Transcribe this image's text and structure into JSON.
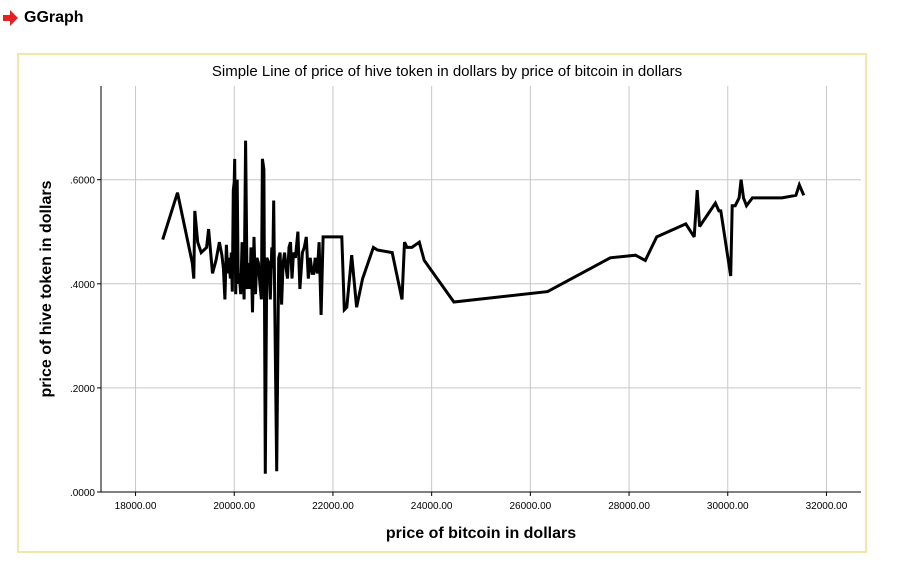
{
  "page": {
    "section_title": "GGraph",
    "section_icon": "red-arrow-right-icon",
    "accent_color": "#e52020",
    "frame_color": "#f1e7a6"
  },
  "chart_data": {
    "type": "line",
    "title": "Simple Line of price of hive token in dollars by price of bitcoin in dollars",
    "xlabel": "price of bitcoin in dollars",
    "ylabel": "price of hive token in dollars",
    "xlim": [
      17300,
      32700
    ],
    "ylim": [
      0,
      0.78
    ],
    "grid": true,
    "line_color": "#000000",
    "x_ticks": [
      18000,
      20000,
      22000,
      24000,
      26000,
      28000,
      30000,
      32000
    ],
    "x_tick_labels": [
      "18000.00",
      "20000.00",
      "22000.00",
      "24000.00",
      "26000.00",
      "28000.00",
      "30000.00",
      "32000.00"
    ],
    "y_ticks": [
      0,
      0.2,
      0.4,
      0.6
    ],
    "y_tick_labels": [
      ".0000",
      ".2000",
      ".4000",
      ".6000"
    ],
    "series": [
      {
        "name": "price of hive token in dollars",
        "x": [
          18550,
          18850,
          19150,
          19180,
          19200,
          19260,
          19330,
          19440,
          19480,
          19560,
          19630,
          19700,
          19750,
          19780,
          19810,
          19840,
          19870,
          19900,
          19920,
          19940,
          19960,
          19980,
          20000,
          20010,
          20030,
          20060,
          20080,
          20100,
          20130,
          20160,
          20200,
          20230,
          20260,
          20280,
          20300,
          20320,
          20340,
          20370,
          20400,
          20430,
          20460,
          20490,
          20520,
          20550,
          20570,
          20600,
          20630,
          20660,
          20700,
          20730,
          20760,
          20780,
          20800,
          20820,
          20860,
          20900,
          20930,
          20960,
          20990,
          21020,
          21050,
          21080,
          21110,
          21140,
          21170,
          21200,
          21240,
          21290,
          21330,
          21380,
          21420,
          21460,
          21500,
          21540,
          21580,
          21610,
          21640,
          21680,
          21720,
          21760,
          21800,
          22180,
          22230,
          22280,
          22380,
          22480,
          22600,
          22820,
          22900,
          23200,
          23400,
          23450,
          23500,
          23600,
          23750,
          23850,
          24450,
          26350,
          27620,
          28130,
          28330,
          28560,
          29150,
          29320,
          29380,
          29430,
          29750,
          29820,
          29860,
          30060,
          30090,
          30150,
          30230,
          30270,
          30320,
          30380,
          30500,
          31100,
          31380,
          31450,
          31540
        ],
        "y": [
          0.485,
          0.575,
          0.44,
          0.41,
          0.54,
          0.48,
          0.46,
          0.47,
          0.505,
          0.42,
          0.445,
          0.48,
          0.455,
          0.43,
          0.37,
          0.475,
          0.42,
          0.45,
          0.41,
          0.46,
          0.385,
          0.58,
          0.595,
          0.64,
          0.38,
          0.6,
          0.4,
          0.42,
          0.38,
          0.48,
          0.37,
          0.675,
          0.39,
          0.43,
          0.44,
          0.39,
          0.47,
          0.345,
          0.49,
          0.38,
          0.45,
          0.44,
          0.4,
          0.37,
          0.64,
          0.62,
          0.035,
          0.45,
          0.44,
          0.37,
          0.47,
          0.43,
          0.56,
          0.37,
          0.04,
          0.45,
          0.46,
          0.36,
          0.44,
          0.46,
          0.43,
          0.41,
          0.47,
          0.48,
          0.41,
          0.46,
          0.45,
          0.5,
          0.39,
          0.46,
          0.47,
          0.49,
          0.41,
          0.45,
          0.42,
          0.42,
          0.45,
          0.42,
          0.48,
          0.34,
          0.49,
          0.49,
          0.35,
          0.355,
          0.455,
          0.355,
          0.41,
          0.47,
          0.465,
          0.46,
          0.37,
          0.48,
          0.47,
          0.47,
          0.48,
          0.445,
          0.365,
          0.385,
          0.45,
          0.455,
          0.445,
          0.49,
          0.515,
          0.49,
          0.58,
          0.51,
          0.555,
          0.54,
          0.54,
          0.415,
          0.55,
          0.55,
          0.565,
          0.6,
          0.565,
          0.55,
          0.565,
          0.565,
          0.57,
          0.59,
          0.57
        ]
      }
    ]
  }
}
